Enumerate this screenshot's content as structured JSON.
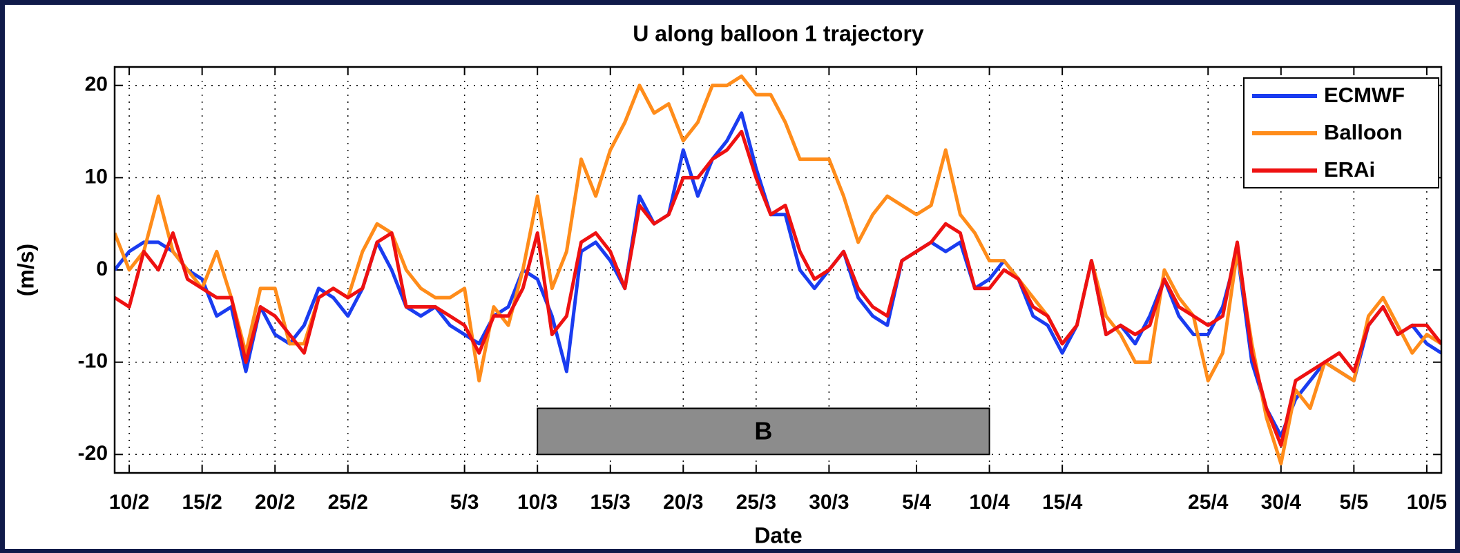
{
  "chart_data": {
    "type": "line",
    "title": "U along balloon 1 trajectory",
    "xlabel": "Date",
    "ylabel": "(m/s)",
    "x": [
      "9/2",
      "10/2",
      "11/2",
      "12/2",
      "13/2",
      "14/2",
      "15/2",
      "16/2",
      "17/2",
      "18/2",
      "19/2",
      "20/2",
      "21/2",
      "22/2",
      "23/2",
      "24/2",
      "25/2",
      "26/2",
      "27/2",
      "28/2",
      "1/3",
      "2/3",
      "3/3",
      "4/3",
      "5/3",
      "6/3",
      "7/3",
      "8/3",
      "9/3",
      "10/3",
      "11/3",
      "12/3",
      "13/3",
      "14/3",
      "15/3",
      "16/3",
      "17/3",
      "18/3",
      "19/3",
      "20/3",
      "21/3",
      "22/3",
      "23/3",
      "24/3",
      "25/3",
      "26/3",
      "27/3",
      "28/3",
      "29/3",
      "30/3",
      "31/3",
      "1/4",
      "2/4",
      "3/4",
      "4/4",
      "5/4",
      "6/4",
      "7/4",
      "8/4",
      "9/4",
      "10/4",
      "11/4",
      "12/4",
      "13/4",
      "14/4",
      "15/4",
      "16/4",
      "17/4",
      "18/4",
      "19/4",
      "20/4",
      "21/4",
      "22/4",
      "23/4",
      "24/4",
      "25/4",
      "26/4",
      "27/4",
      "28/4",
      "29/4",
      "30/4",
      "1/5",
      "2/5",
      "3/5",
      "4/5",
      "5/5",
      "6/5",
      "7/5",
      "8/5",
      "9/5",
      "10/5",
      "11/5"
    ],
    "series": [
      {
        "name": "ECMWF",
        "color": "#1a3cf0",
        "values": [
          0,
          2,
          3,
          3,
          2,
          0,
          -1,
          -5,
          -4,
          -11,
          -4,
          -7,
          -8,
          -6,
          -2,
          -3,
          -5,
          -2,
          3,
          0,
          -4,
          -5,
          -4,
          -6,
          -7,
          -8,
          -5,
          -4,
          0,
          -1,
          -5,
          -11,
          2,
          3,
          1,
          -2,
          8,
          5,
          6,
          13,
          8,
          12,
          14,
          17,
          11,
          6,
          6,
          0,
          -2,
          0,
          2,
          -3,
          -5,
          -6,
          1,
          2,
          3,
          2,
          3,
          -2,
          -1,
          1,
          -1,
          -5,
          -6,
          -9,
          -6,
          1,
          -7,
          -6,
          -8,
          -5,
          -1,
          -5,
          -7,
          -7,
          -4,
          2,
          -10,
          -15,
          -18,
          -14,
          -12,
          -10,
          -11,
          -12,
          -6,
          -4,
          -7,
          -6,
          -8,
          -9
        ]
      },
      {
        "name": "Balloon",
        "color": "#ff8c1a",
        "values": [
          4,
          0,
          2,
          8,
          2,
          0,
          -2,
          2,
          -3,
          -9,
          -2,
          -2,
          -8,
          -8,
          -3,
          -2,
          -3,
          2,
          5,
          4,
          0,
          -2,
          -3,
          -3,
          -2,
          -12,
          -4,
          -6,
          0,
          8,
          -2,
          2,
          12,
          8,
          13,
          16,
          20,
          17,
          18,
          14,
          16,
          20,
          20,
          21,
          19,
          19,
          16,
          12,
          12,
          12,
          8,
          3,
          6,
          8,
          7,
          6,
          7,
          13,
          6,
          4,
          1,
          1,
          -1,
          -3,
          -5,
          -8,
          -6,
          1,
          -5,
          -7,
          -10,
          -10,
          0,
          -3,
          -5,
          -12,
          -9,
          2,
          -8,
          -16,
          -21,
          -13,
          -15,
          -10,
          -11,
          -12,
          -5,
          -3,
          -6,
          -9,
          -7,
          -8
        ]
      },
      {
        "name": "ERAi",
        "color": "#ee1111",
        "values": [
          -3,
          -4,
          2,
          0,
          4,
          -1,
          -2,
          -3,
          -3,
          -10,
          -4,
          -5,
          -7,
          -9,
          -3,
          -2,
          -3,
          -2,
          3,
          4,
          -4,
          -4,
          -4,
          -5,
          -6,
          -9,
          -5,
          -5,
          -2,
          4,
          -7,
          -5,
          3,
          4,
          2,
          -2,
          7,
          5,
          6,
          10,
          10,
          12,
          13,
          15,
          10,
          6,
          7,
          2,
          -1,
          0,
          2,
          -2,
          -4,
          -5,
          1,
          2,
          3,
          5,
          4,
          -2,
          -2,
          0,
          -1,
          -4,
          -5,
          -8,
          -6,
          1,
          -7,
          -6,
          -7,
          -6,
          -1,
          -4,
          -5,
          -6,
          -5,
          3,
          -9,
          -15,
          -19,
          -12,
          -11,
          -10,
          -9,
          -11,
          -6,
          -4,
          -7,
          -6,
          -6,
          -8
        ]
      }
    ],
    "xlim": [
      "9/2",
      "11/5"
    ],
    "xticks": [
      "10/2",
      "15/2",
      "20/2",
      "25/2",
      "5/3",
      "10/3",
      "15/3",
      "20/3",
      "25/3",
      "30/3",
      "5/4",
      "10/4",
      "15/4",
      "25/4",
      "30/4",
      "5/5",
      "10/5"
    ],
    "ylim": [
      -22,
      22
    ],
    "yticks": [
      -20,
      -10,
      0,
      10,
      20
    ],
    "grid": true,
    "legend": "upper right",
    "annotations": [
      {
        "text": "B",
        "x": [
          "10/3",
          "10/4"
        ],
        "y": [
          -20,
          -15
        ],
        "color": "#8c8c8c"
      }
    ]
  }
}
